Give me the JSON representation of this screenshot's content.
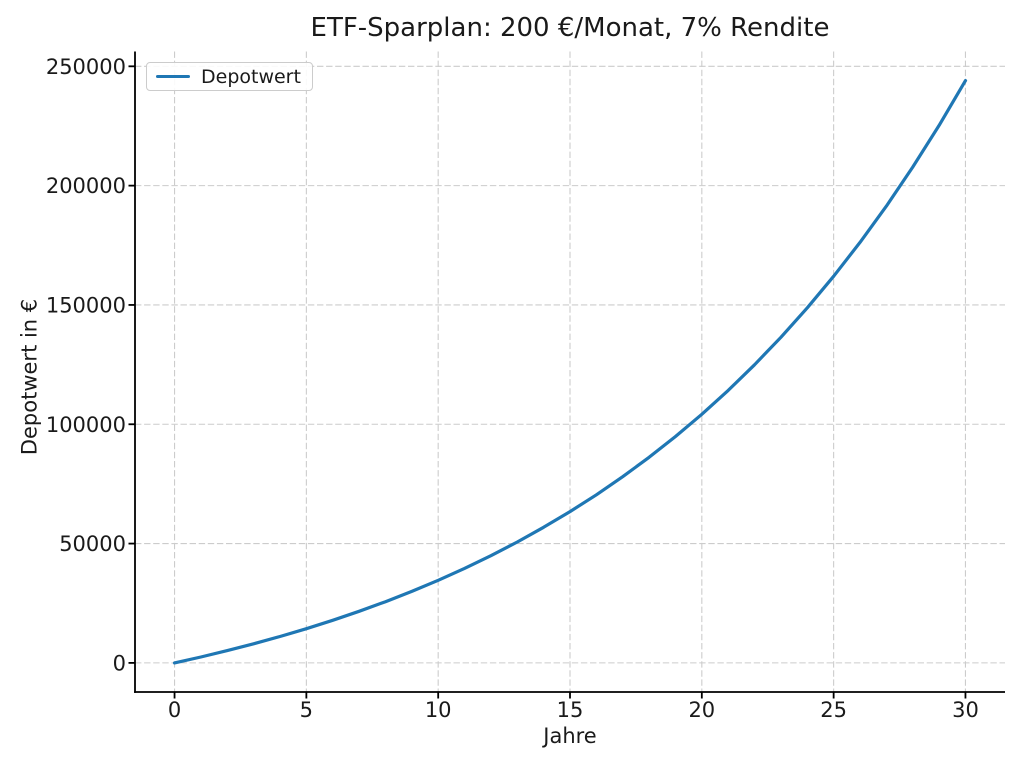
{
  "chart_data": {
    "type": "line",
    "title": "ETF-Sparplan: 200 €/Monat, 7% Rendite",
    "xlabel": "Jahre",
    "ylabel": "Depotwert in €",
    "legend": {
      "position": "upper-left",
      "entries": [
        {
          "label": "Depotwert",
          "color": "#1f77b4"
        }
      ]
    },
    "x": [
      0,
      1,
      2,
      3,
      4,
      5,
      6,
      7,
      8,
      9,
      10,
      11,
      12,
      13,
      14,
      15,
      16,
      17,
      18,
      19,
      20,
      21,
      22,
      23,
      24,
      25,
      26,
      27,
      28,
      29,
      30
    ],
    "series": [
      {
        "name": "Depotwert",
        "color": "#1f77b4",
        "values": [
          0,
          2479,
          5136,
          7986,
          11042,
          14319,
          17832,
          21600,
          25640,
          29972,
          34617,
          39598,
          44939,
          50666,
          56808,
          63394,
          70456,
          78028,
          86147,
          94853,
          104189,
          114200,
          124934,
          136445,
          148788,
          162023,
          176215,
          191433,
          207750,
          225249,
          244009
        ]
      }
    ],
    "xticks": [
      0,
      5,
      10,
      15,
      20,
      25,
      30
    ],
    "yticks": [
      0,
      50000,
      100000,
      150000,
      200000,
      250000
    ],
    "xlim": [
      -1.5,
      31.5
    ],
    "ylim": [
      -12200,
      256210
    ],
    "grid": true,
    "grid_style": "dashed",
    "colors": {
      "line": "#1f77b4",
      "grid": "#cccccc",
      "axis": "#000000",
      "text": "#1a1a1a",
      "background": "#ffffff"
    }
  }
}
